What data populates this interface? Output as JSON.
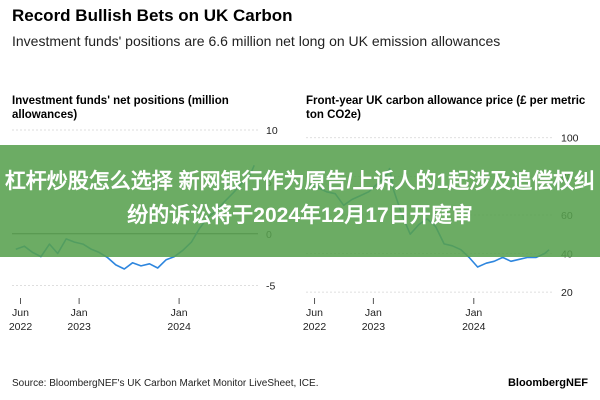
{
  "header": {
    "title": "Record Bullish Bets on UK Carbon",
    "subtitle": "Investment funds' positions are 6.6 million net long on UK emission allowances"
  },
  "overlay_text": "杠杆炒股怎么选择 新网银行作为原告/上诉人的1起涉及追偿权纠纷的诉讼将于2024年12月17日开庭审",
  "footer": {
    "source": "Source: BloombergNEF's UK Carbon Market Monitor LiveSheet, ICE.",
    "brand": "BloombergNEF"
  },
  "colors": {
    "line": "#2e86de",
    "zero_line": "#333333",
    "grid": "#d4d4d4",
    "overlay": "#58a04e"
  },
  "chart_data": [
    {
      "type": "line",
      "title": "Investment funds' net positions (million allowances)",
      "x_ticks": [
        {
          "value": "2022-06-01",
          "label": "Jun",
          "year": "2022"
        },
        {
          "value": "2023-01-01",
          "label": "Jan",
          "year": "2023"
        },
        {
          "value": "2024-01-01",
          "label": "Jan",
          "year": "2024"
        }
      ],
      "y_ticks": [
        10,
        5,
        0,
        -5
      ],
      "xlim": [
        "2022-05-01",
        "2024-10-15"
      ],
      "ylim": [
        -6,
        10
      ],
      "series": [
        {
          "x": [
            "2022-05-15",
            "2022-06-15",
            "2022-07-15",
            "2022-08-15",
            "2022-09-15",
            "2022-10-15",
            "2022-11-15",
            "2022-12-15",
            "2023-01-15",
            "2023-02-15",
            "2023-03-15",
            "2023-04-15",
            "2023-05-15",
            "2023-06-15",
            "2023-07-15",
            "2023-08-15",
            "2023-09-15",
            "2023-10-15",
            "2023-11-15",
            "2023-12-15",
            "2024-01-15",
            "2024-02-15",
            "2024-03-15",
            "2024-04-15",
            "2024-05-15",
            "2024-06-15",
            "2024-07-15",
            "2024-08-15",
            "2024-09-15",
            "2024-10-01"
          ],
          "y": [
            -1.5,
            -1.2,
            -1.8,
            -2.2,
            -1.0,
            -1.9,
            -0.5,
            -0.8,
            -1.0,
            -1.5,
            -1.8,
            -2.3,
            -3.0,
            -3.4,
            -2.8,
            -3.1,
            -2.9,
            -3.3,
            -2.5,
            -2.2,
            -1.6,
            -0.8,
            0.5,
            1.6,
            2.2,
            3.1,
            3.9,
            4.8,
            5.6,
            6.6
          ]
        }
      ]
    },
    {
      "type": "line",
      "title": "Front-year UK carbon allowance price (£ per metric ton CO2e)",
      "x_ticks": [
        {
          "value": "2022-06-01",
          "label": "Jun",
          "year": "2022"
        },
        {
          "value": "2023-01-01",
          "label": "Jan",
          "year": "2023"
        },
        {
          "value": "2024-01-01",
          "label": "Jan",
          "year": "2024"
        }
      ],
      "y_ticks": [
        100,
        80,
        60,
        40,
        20
      ],
      "xlim": [
        "2022-05-01",
        "2024-10-15"
      ],
      "ylim": [
        18,
        104
      ],
      "series": [
        {
          "x": [
            "2022-05-15",
            "2022-06-15",
            "2022-07-15",
            "2022-08-15",
            "2022-09-15",
            "2022-10-15",
            "2022-11-15",
            "2022-12-15",
            "2023-01-15",
            "2023-02-15",
            "2023-03-01",
            "2023-03-15",
            "2023-04-15",
            "2023-05-15",
            "2023-06-15",
            "2023-07-15",
            "2023-08-15",
            "2023-09-15",
            "2023-10-15",
            "2023-11-15",
            "2023-12-15",
            "2024-01-15",
            "2024-02-15",
            "2024-03-15",
            "2024-04-15",
            "2024-05-15",
            "2024-06-15",
            "2024-07-15",
            "2024-08-15",
            "2024-09-15",
            "2024-10-01"
          ],
          "y": [
            76,
            74,
            72,
            71,
            65,
            68,
            70,
            72,
            76,
            80,
            84,
            73,
            60,
            50,
            55,
            58,
            54,
            45,
            44,
            42,
            38,
            33,
            35,
            36,
            38,
            36,
            37,
            38,
            38,
            40,
            42
          ]
        }
      ]
    }
  ]
}
